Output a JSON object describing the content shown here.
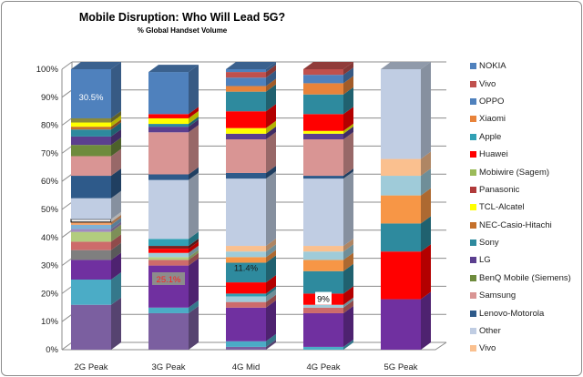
{
  "chart_data": {
    "type": "bar",
    "stacked": true,
    "style": "3d",
    "title": "Mobile Disruption: Who Will Lead 5G?",
    "subtitle": "% Global Handset Volume",
    "xlabel": "",
    "ylabel": "",
    "ylim": [
      0,
      100
    ],
    "yticks": [
      "0%",
      "10%",
      "20%",
      "30%",
      "40%",
      "50%",
      "60%",
      "70%",
      "80%",
      "90%",
      "100%"
    ],
    "grid": true,
    "legend_position": "right",
    "legend": [
      {
        "name": "NOKIA",
        "color": "#4f81bd"
      },
      {
        "name": "Vivo",
        "color": "#c0504d"
      },
      {
        "name": "OPPO",
        "color": "#4f81bd"
      },
      {
        "name": "Xiaomi",
        "color": "#e8833a"
      },
      {
        "name": "Apple",
        "color": "#31a0b4"
      },
      {
        "name": "Huawei",
        "color": "#ff0000"
      },
      {
        "name": "Mobiwire (Sagem)",
        "color": "#9bbb59"
      },
      {
        "name": "Panasonic",
        "color": "#b03a3a"
      },
      {
        "name": "TCL-Alcatel",
        "color": "#ffff00"
      },
      {
        "name": "NEC-Casio-Hitachi",
        "color": "#c5702a"
      },
      {
        "name": "Sony",
        "color": "#2e8a9e"
      },
      {
        "name": "LG",
        "color": "#5b3f8f"
      },
      {
        "name": "BenQ Mobile (Siemens)",
        "color": "#6e8b3d"
      },
      {
        "name": "Samsung",
        "color": "#d99594"
      },
      {
        "name": "Lenovo-Motorola",
        "color": "#2e5a8a"
      },
      {
        "name": "Other",
        "color": "#c0cde3"
      },
      {
        "name": "Vivo",
        "color": "#fac08f"
      }
    ],
    "categories": [
      "2G Peak",
      "3G Peak",
      "4G Mid",
      "4G Peak",
      "5G Peak"
    ],
    "bars": [
      {
        "category": "2G Peak",
        "label": "30.5%",
        "segments": [
          {
            "value": 16,
            "color": "#7b5fa0"
          },
          {
            "value": 9,
            "color": "#4bacc6"
          },
          {
            "value": 7,
            "color": "#7030a0"
          },
          {
            "value": 3.5,
            "color": "#7f7f7f"
          },
          {
            "value": 3,
            "color": "#cd6b6b"
          },
          {
            "value": 3.5,
            "color": "#b2cc7e"
          },
          {
            "value": 1,
            "color": "#a08ac0"
          },
          {
            "value": 1.5,
            "color": "#7fb2d6"
          },
          {
            "value": 1,
            "color": "#f2a36a"
          },
          {
            "value": 1,
            "color": "#ffffff"
          },
          {
            "value": 7.5,
            "color": "#c0cde3"
          },
          {
            "value": 8,
            "color": "#2e5a8a"
          },
          {
            "value": 7,
            "color": "#d99594"
          },
          {
            "value": 4,
            "color": "#6e8b3d"
          },
          {
            "value": 3,
            "color": "#5b3f8f"
          },
          {
            "value": 2.5,
            "color": "#2e8a9e"
          },
          {
            "value": 1,
            "color": "#c5702a"
          },
          {
            "value": 1.5,
            "color": "#ffff00"
          },
          {
            "value": 1.5,
            "color": "#8a8a3a"
          },
          {
            "value": 17.5,
            "color": "#4f81bd"
          }
        ]
      },
      {
        "category": "3G Peak",
        "label": "25.1%",
        "segments": [
          {
            "value": 13,
            "color": "#7b5fa0"
          },
          {
            "value": 2,
            "color": "#4bacc6"
          },
          {
            "value": 15,
            "color": "#7030a0"
          },
          {
            "value": 2,
            "color": "#cd6b6b"
          },
          {
            "value": 1,
            "color": "#b2cc7e"
          },
          {
            "value": 1.5,
            "color": "#9fcbd9"
          },
          {
            "value": 1.5,
            "color": "#ff0000"
          },
          {
            "value": 1,
            "color": "#7f1f1f"
          },
          {
            "value": 2.5,
            "color": "#31a0b4"
          },
          {
            "value": 21,
            "color": "#c0cde3"
          },
          {
            "value": 2,
            "color": "#2e5a8a"
          },
          {
            "value": 15,
            "color": "#d99594"
          },
          {
            "value": 2,
            "color": "#5b3f8f"
          },
          {
            "value": 1,
            "color": "#2e8a9e"
          },
          {
            "value": 2,
            "color": "#ffff00"
          },
          {
            "value": 1.5,
            "color": "#ff0000"
          },
          {
            "value": 15,
            "color": "#4f81bd"
          }
        ]
      },
      {
        "category": "4G Mid",
        "label": "11.4%",
        "segments": [
          {
            "value": 1,
            "color": "#7b5fa0"
          },
          {
            "value": 2,
            "color": "#4bacc6"
          },
          {
            "value": 12,
            "color": "#7030a0"
          },
          {
            "value": 2,
            "color": "#cd6b6b"
          },
          {
            "value": 2,
            "color": "#9fcbd9"
          },
          {
            "value": 1,
            "color": "#31a0b4"
          },
          {
            "value": 4,
            "color": "#ff0000"
          },
          {
            "value": 7,
            "color": "#2e8a9e"
          },
          {
            "value": 2,
            "color": "#f79646"
          },
          {
            "value": 2,
            "color": "#9fcbd9"
          },
          {
            "value": 2,
            "color": "#fac08f"
          },
          {
            "value": 24,
            "color": "#c0cde3"
          },
          {
            "value": 2,
            "color": "#2e5a8a"
          },
          {
            "value": 12,
            "color": "#d99594"
          },
          {
            "value": 2,
            "color": "#5b3f8f"
          },
          {
            "value": 2,
            "color": "#ffff00"
          },
          {
            "value": 6,
            "color": "#ff0000"
          },
          {
            "value": 7,
            "color": "#2e8a9e"
          },
          {
            "value": 2,
            "color": "#e8833a"
          },
          {
            "value": 3,
            "color": "#4f81bd"
          },
          {
            "value": 2,
            "color": "#c0504d"
          },
          {
            "value": 1,
            "color": "#4f81bd"
          }
        ]
      },
      {
        "category": "4G Peak",
        "label": "9%",
        "segments": [
          {
            "value": 1,
            "color": "#4bacc6"
          },
          {
            "value": 12,
            "color": "#7030a0"
          },
          {
            "value": 2,
            "color": "#cd6b6b"
          },
          {
            "value": 1,
            "color": "#9fcbd9"
          },
          {
            "value": 4,
            "color": "#ff0000"
          },
          {
            "value": 8,
            "color": "#2e8a9e"
          },
          {
            "value": 4,
            "color": "#f79646"
          },
          {
            "value": 3,
            "color": "#9fcbd9"
          },
          {
            "value": 2,
            "color": "#fac08f"
          },
          {
            "value": 24,
            "color": "#c0cde3"
          },
          {
            "value": 1,
            "color": "#2e5a8a"
          },
          {
            "value": 13,
            "color": "#d99594"
          },
          {
            "value": 2,
            "color": "#5b3f8f"
          },
          {
            "value": 1,
            "color": "#ffff00"
          },
          {
            "value": 6,
            "color": "#ff0000"
          },
          {
            "value": 7,
            "color": "#2e8a9e"
          },
          {
            "value": 4,
            "color": "#e8833a"
          },
          {
            "value": 3,
            "color": "#4f81bd"
          },
          {
            "value": 2,
            "color": "#c0504d"
          }
        ]
      },
      {
        "category": "5G Peak",
        "label": "",
        "segments": [
          {
            "value": 18,
            "color": "#7030a0"
          },
          {
            "value": 17,
            "color": "#ff0000"
          },
          {
            "value": 10,
            "color": "#2e8a9e"
          },
          {
            "value": 10,
            "color": "#f79646"
          },
          {
            "value": 7,
            "color": "#9fcbd9"
          },
          {
            "value": 6,
            "color": "#fac08f"
          },
          {
            "value": 32,
            "color": "#c0cde3"
          }
        ]
      }
    ]
  }
}
